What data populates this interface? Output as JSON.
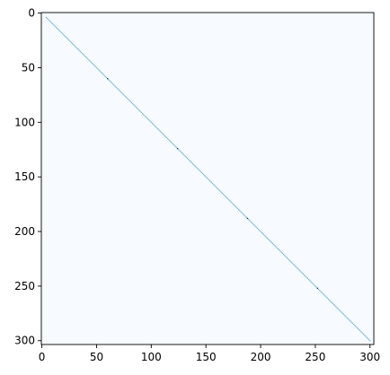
{
  "chart_data": {
    "type": "heatmap",
    "title": "",
    "xlabel": "",
    "ylabel": "",
    "xlim": [
      0,
      304
    ],
    "ylim": [
      304,
      0
    ],
    "x_ticks": [
      0,
      50,
      100,
      150,
      200,
      250,
      300
    ],
    "y_ticks": [
      0,
      50,
      100,
      150,
      200,
      250,
      300
    ],
    "x_tick_labels": [
      "0",
      "50",
      "100",
      "150",
      "200",
      "250",
      "300"
    ],
    "y_tick_labels": [
      "0",
      "50",
      "100",
      "150",
      "200",
      "250",
      "300"
    ],
    "matrix_size": 304,
    "colormap": "Blues",
    "background_color": "#f7fbff",
    "diagonal_color": "#6baed6",
    "diagonal_dark_color": "#08306b",
    "diagonal": {
      "from": 4,
      "to": 300
    },
    "dark_points": [
      60,
      124,
      188,
      252
    ],
    "grid": false,
    "legend": "none"
  }
}
